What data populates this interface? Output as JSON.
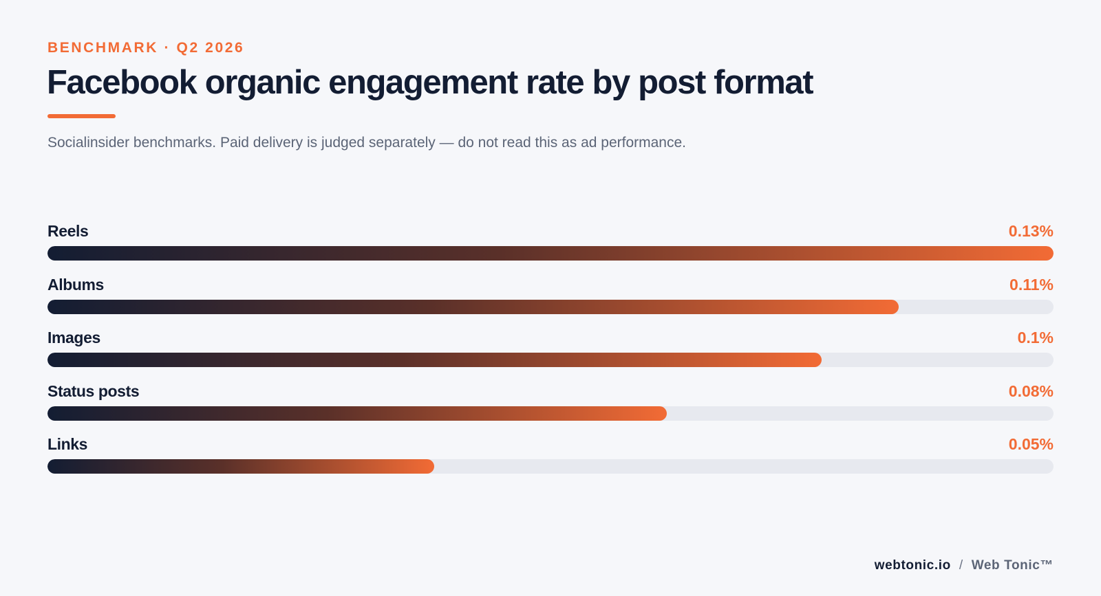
{
  "header": {
    "eyebrow": "BENCHMARK · Q2 2026",
    "title": "Facebook organic engagement rate by post format",
    "subtitle": "Socialinsider benchmarks. Paid delivery is judged separately — do not read this as ad performance."
  },
  "colors": {
    "accent": "#f26b35",
    "navy": "#131d33",
    "track": "#e7e9ef",
    "background": "#f6f7fa"
  },
  "chart_data": {
    "type": "bar",
    "orientation": "horizontal",
    "categories": [
      "Reels",
      "Albums",
      "Images",
      "Status posts",
      "Links"
    ],
    "values": [
      0.13,
      0.11,
      0.1,
      0.08,
      0.05
    ],
    "value_labels": [
      "0.13%",
      "0.11%",
      "0.1%",
      "0.08%",
      "0.05%"
    ],
    "unit": "%",
    "xlim": [
      0,
      0.13
    ],
    "grid": false,
    "legend": "none"
  },
  "footer": {
    "domain": "webtonic.io",
    "separator": "/",
    "brand": "Web Tonic™"
  }
}
